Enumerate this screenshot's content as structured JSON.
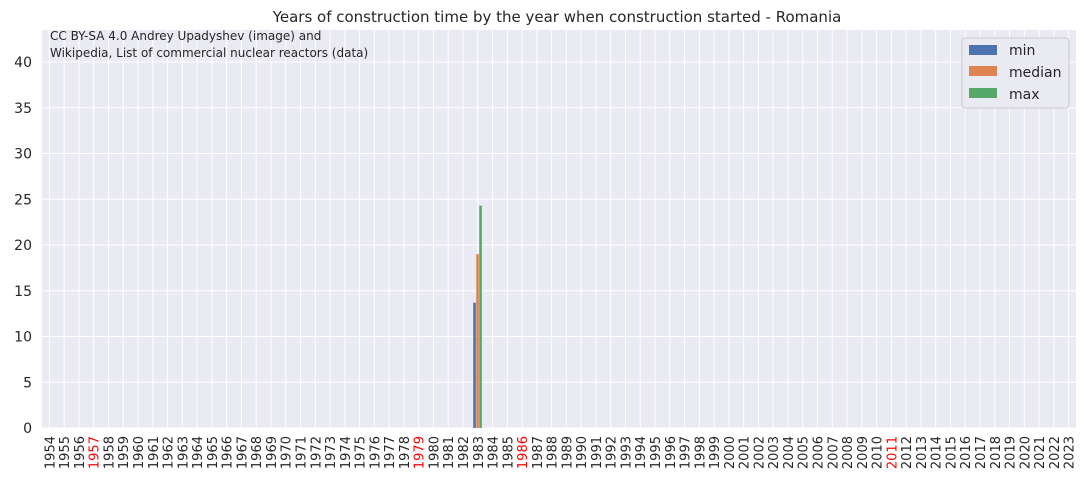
{
  "chart_data": {
    "type": "bar",
    "title": "Years of construction time by the year when construction started - Romania",
    "credit_lines": [
      "CC BY-SA 4.0 Andrey Upadyshev (image) and",
      "Wikipedia, List of commercial nuclear reactors (data)"
    ],
    "xlabel": "",
    "ylabel": "",
    "ylim": [
      0,
      43.5
    ],
    "yticks": [
      0,
      5,
      10,
      15,
      20,
      25,
      30,
      35,
      40
    ],
    "grid": true,
    "legend_position": "top-right",
    "categories": [
      "1954",
      "1955",
      "1956",
      "1957",
      "1958",
      "1959",
      "1960",
      "1961",
      "1962",
      "1963",
      "1964",
      "1965",
      "1966",
      "1967",
      "1968",
      "1969",
      "1970",
      "1971",
      "1972",
      "1973",
      "1974",
      "1975",
      "1976",
      "1977",
      "1978",
      "1979",
      "1980",
      "1981",
      "1982",
      "1983",
      "1984",
      "1985",
      "1986",
      "1987",
      "1988",
      "1989",
      "1990",
      "1991",
      "1992",
      "1993",
      "1994",
      "1995",
      "1996",
      "1997",
      "1998",
      "1999",
      "2000",
      "2001",
      "2002",
      "2003",
      "2004",
      "2005",
      "2006",
      "2007",
      "2008",
      "2009",
      "2010",
      "2011",
      "2012",
      "2013",
      "2014",
      "2015",
      "2016",
      "2017",
      "2018",
      "2019",
      "2020",
      "2021",
      "2022",
      "2023"
    ],
    "highlighted_categories": [
      "1957",
      "1979",
      "1986",
      "2011"
    ],
    "highlight_color": "#ff0000",
    "series": [
      {
        "name": "min",
        "color": "#4c72b0",
        "values": {
          "1983": 13.7
        }
      },
      {
        "name": "median",
        "color": "#dd8452",
        "values": {
          "1983": 19.0
        }
      },
      {
        "name": "max",
        "color": "#55a868",
        "values": {
          "1983": 24.3
        }
      }
    ]
  }
}
